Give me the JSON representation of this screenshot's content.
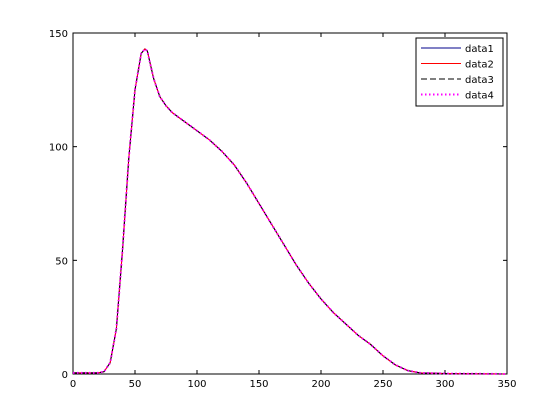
{
  "chart_data": {
    "type": "line",
    "x": [
      0,
      10,
      20,
      25,
      30,
      35,
      40,
      45,
      50,
      55,
      58,
      60,
      65,
      70,
      75,
      80,
      90,
      100,
      110,
      120,
      130,
      140,
      150,
      160,
      170,
      180,
      190,
      200,
      210,
      220,
      230,
      240,
      250,
      260,
      270,
      280,
      300,
      350
    ],
    "series": [
      {
        "name": "data1",
        "color": "#00008b",
        "linestyle": "solid",
        "values": [
          0.5,
          0.5,
          0.5,
          1,
          5,
          20,
          55,
          95,
          125,
          141,
          143,
          142,
          130,
          122,
          118,
          115,
          111,
          107,
          103,
          98,
          92,
          84,
          75,
          66,
          57,
          48,
          40,
          33,
          27,
          22,
          17,
          13,
          8,
          4,
          1.5,
          0.5,
          0.2,
          0
        ]
      },
      {
        "name": "data2",
        "color": "#ff0000",
        "linestyle": "solid",
        "values": [
          0.5,
          0.5,
          0.5,
          1,
          5,
          20,
          55,
          95,
          125,
          141,
          143,
          142,
          130,
          122,
          118,
          115,
          111,
          107,
          103,
          98,
          92,
          84,
          75,
          66,
          57,
          48,
          40,
          33,
          27,
          22,
          17,
          13,
          8,
          4,
          1.5,
          0.5,
          0.2,
          0
        ]
      },
      {
        "name": "data3",
        "color": "#000000",
        "linestyle": "dashed",
        "values": [
          0.5,
          0.5,
          0.5,
          1,
          5,
          20,
          55,
          95,
          125,
          141,
          143,
          142,
          130,
          122,
          118,
          115,
          111,
          107,
          103,
          98,
          92,
          84,
          75,
          66,
          57,
          48,
          40,
          33,
          27,
          22,
          17,
          13,
          8,
          4,
          1.5,
          0.5,
          0.2,
          0
        ]
      },
      {
        "name": "data4",
        "color": "#ff00ff",
        "linestyle": "dotted",
        "values": [
          0.5,
          0.5,
          0.5,
          1,
          5,
          20,
          55,
          95,
          125,
          141,
          143,
          142,
          130,
          122,
          118,
          115,
          111,
          107,
          103,
          98,
          92,
          84,
          75,
          66,
          57,
          48,
          40,
          33,
          27,
          22,
          17,
          13,
          8,
          4,
          1.5,
          0.5,
          0.2,
          0
        ]
      }
    ],
    "xlim": [
      0,
      350
    ],
    "xticks": [
      0,
      50,
      100,
      150,
      200,
      250,
      300,
      350
    ],
    "ylim": [
      0,
      150
    ],
    "yticks": [
      0,
      50,
      100,
      150
    ],
    "legend": "upper-right"
  }
}
